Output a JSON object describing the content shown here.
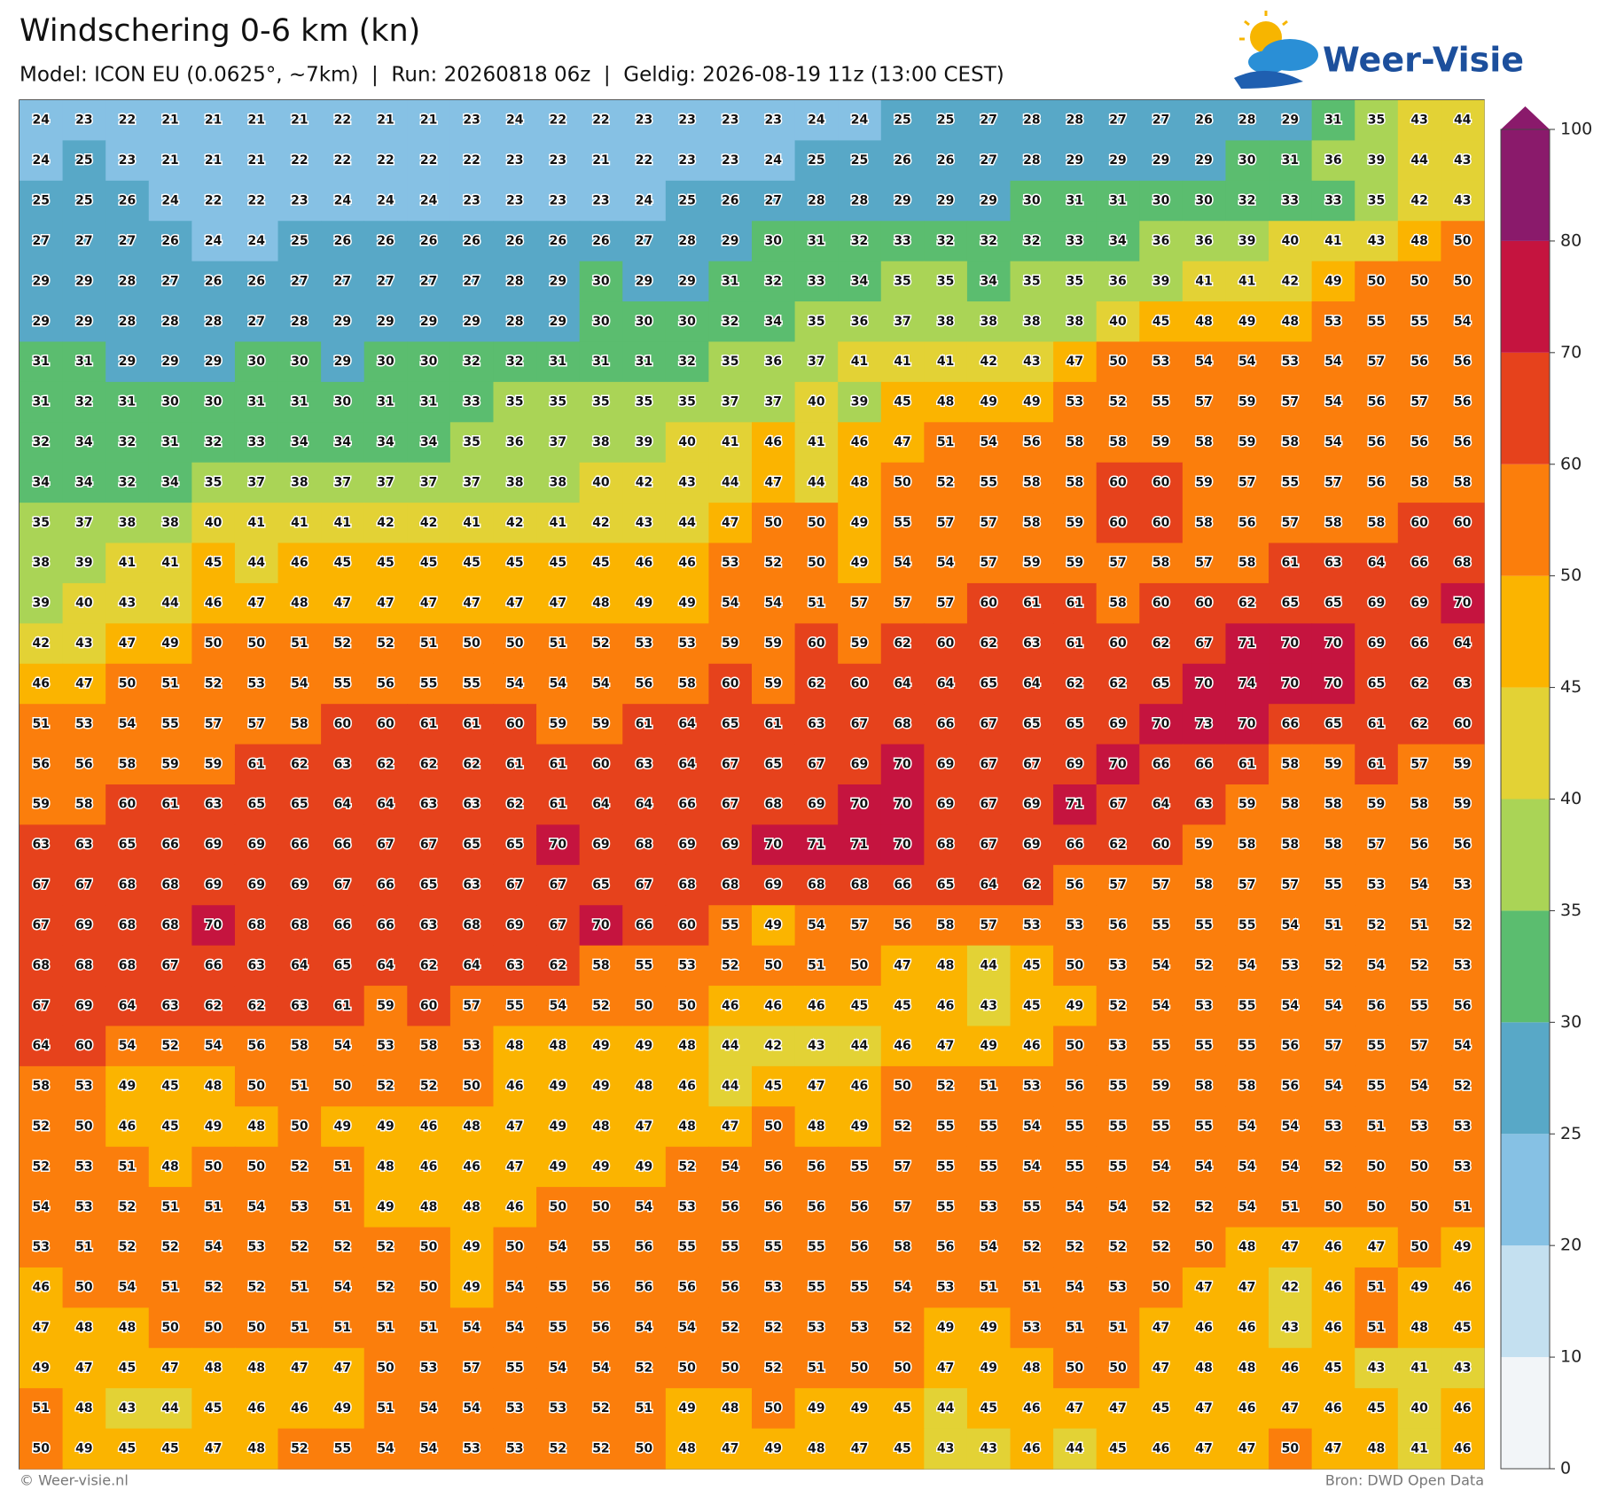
{
  "header": {
    "title": "Windschering 0-6 km (kn)",
    "subtitle": "Model: ICON EU (0.0625°, ~7km)  |  Run: 20260818 06z  |  Geldig: 2026-08-19 11z (13:00 CEST)"
  },
  "logo": "Weer-Visie",
  "map": {
    "rows": [
      [
        24,
        23,
        22,
        21,
        21,
        21,
        21,
        22,
        21,
        21,
        23,
        24,
        22,
        22,
        23,
        23,
        23,
        23,
        24,
        24,
        25,
        25,
        27,
        28,
        28,
        27,
        27,
        26,
        28,
        29,
        31,
        35,
        43,
        44
      ],
      [
        24,
        25,
        23,
        21,
        21,
        21,
        22,
        22,
        22,
        22,
        22,
        23,
        23,
        21,
        22,
        23,
        23,
        24,
        25,
        25,
        26,
        26,
        27,
        28,
        29,
        29,
        29,
        29,
        30,
        31,
        36,
        39,
        44,
        43
      ],
      [
        25,
        25,
        26,
        24,
        22,
        22,
        23,
        24,
        24,
        24,
        23,
        23,
        23,
        23,
        24,
        25,
        26,
        27,
        28,
        28,
        29,
        29,
        29,
        30,
        31,
        31,
        30,
        30,
        32,
        33,
        33,
        35,
        42,
        43
      ],
      [
        27,
        27,
        27,
        26,
        24,
        24,
        25,
        26,
        26,
        26,
        26,
        26,
        26,
        26,
        27,
        28,
        29,
        30,
        31,
        32,
        33,
        32,
        32,
        32,
        33,
        34,
        36,
        36,
        39,
        40,
        41,
        43,
        48,
        50
      ],
      [
        29,
        29,
        28,
        27,
        26,
        26,
        27,
        27,
        27,
        27,
        27,
        28,
        29,
        30,
        29,
        29,
        31,
        32,
        33,
        34,
        35,
        35,
        34,
        35,
        35,
        36,
        39,
        41,
        41,
        42,
        49,
        50,
        50,
        50
      ],
      [
        29,
        29,
        28,
        28,
        28,
        27,
        28,
        29,
        29,
        29,
        29,
        28,
        29,
        30,
        30,
        30,
        32,
        34,
        35,
        36,
        37,
        38,
        38,
        38,
        38,
        40,
        45,
        48,
        49,
        48,
        53,
        55,
        55,
        54
      ],
      [
        31,
        31,
        29,
        29,
        29,
        30,
        30,
        29,
        30,
        30,
        32,
        32,
        31,
        31,
        31,
        32,
        35,
        36,
        37,
        41,
        41,
        41,
        42,
        43,
        47,
        50,
        53,
        54,
        54,
        53,
        54,
        57,
        56,
        56
      ],
      [
        31,
        32,
        31,
        30,
        30,
        31,
        31,
        30,
        31,
        31,
        33,
        35,
        35,
        35,
        35,
        35,
        37,
        37,
        40,
        39,
        45,
        48,
        49,
        49,
        53,
        52,
        55,
        57,
        59,
        57,
        54,
        56,
        57,
        56
      ],
      [
        32,
        34,
        32,
        31,
        32,
        33,
        34,
        34,
        34,
        34,
        35,
        36,
        37,
        38,
        39,
        40,
        41,
        46,
        41,
        46,
        47,
        51,
        54,
        56,
        58,
        58,
        59,
        58,
        59,
        58,
        54,
        56,
        56,
        56
      ],
      [
        34,
        34,
        32,
        34,
        35,
        37,
        38,
        37,
        37,
        37,
        37,
        38,
        38,
        40,
        42,
        43,
        44,
        47,
        44,
        48,
        50,
        52,
        55,
        58,
        58,
        60,
        60,
        59,
        57,
        55,
        57,
        56,
        58,
        58
      ],
      [
        35,
        37,
        38,
        38,
        40,
        41,
        41,
        41,
        42,
        42,
        41,
        42,
        41,
        42,
        43,
        44,
        47,
        50,
        50,
        49,
        55,
        57,
        57,
        58,
        59,
        60,
        60,
        58,
        56,
        57,
        58,
        58,
        60,
        60
      ],
      [
        38,
        39,
        41,
        41,
        45,
        44,
        46,
        45,
        45,
        45,
        45,
        45,
        45,
        45,
        46,
        46,
        53,
        52,
        50,
        49,
        54,
        54,
        57,
        59,
        59,
        57,
        58,
        57,
        58,
        61,
        63,
        64,
        66,
        68
      ],
      [
        39,
        40,
        43,
        44,
        46,
        47,
        48,
        47,
        47,
        47,
        47,
        47,
        47,
        48,
        49,
        49,
        54,
        54,
        51,
        57,
        57,
        57,
        60,
        61,
        61,
        58,
        60,
        60,
        62,
        65,
        65,
        69,
        69,
        70
      ],
      [
        42,
        43,
        47,
        49,
        50,
        50,
        51,
        52,
        52,
        51,
        50,
        50,
        51,
        52,
        53,
        53,
        59,
        59,
        60,
        59,
        62,
        60,
        62,
        63,
        61,
        60,
        62,
        67,
        71,
        70,
        70,
        69,
        66,
        64
      ],
      [
        46,
        47,
        50,
        51,
        52,
        53,
        54,
        55,
        56,
        55,
        55,
        54,
        54,
        54,
        56,
        58,
        60,
        59,
        62,
        60,
        64,
        64,
        65,
        64,
        62,
        62,
        65,
        70,
        74,
        70,
        70,
        65,
        62,
        63
      ],
      [
        51,
        53,
        54,
        55,
        57,
        57,
        58,
        60,
        60,
        61,
        61,
        60,
        59,
        59,
        61,
        64,
        65,
        61,
        63,
        67,
        68,
        66,
        67,
        65,
        65,
        69,
        70,
        73,
        70,
        66,
        65,
        61,
        62,
        60
      ],
      [
        56,
        56,
        58,
        59,
        59,
        61,
        62,
        63,
        62,
        62,
        62,
        61,
        61,
        60,
        63,
        64,
        67,
        65,
        67,
        69,
        70,
        69,
        67,
        67,
        69,
        70,
        66,
        66,
        61,
        58,
        59,
        61,
        57,
        59
      ],
      [
        59,
        58,
        60,
        61,
        63,
        65,
        65,
        64,
        64,
        63,
        63,
        62,
        61,
        64,
        64,
        66,
        67,
        68,
        69,
        70,
        70,
        69,
        67,
        69,
        71,
        67,
        64,
        63,
        59,
        58,
        58,
        59,
        58,
        59
      ],
      [
        63,
        63,
        65,
        66,
        69,
        69,
        66,
        66,
        67,
        67,
        65,
        65,
        70,
        69,
        68,
        69,
        69,
        70,
        71,
        71,
        70,
        68,
        67,
        69,
        66,
        62,
        60,
        59,
        58,
        58,
        58,
        57,
        56,
        56
      ],
      [
        67,
        67,
        68,
        68,
        69,
        69,
        69,
        67,
        66,
        65,
        63,
        67,
        67,
        65,
        67,
        68,
        68,
        69,
        68,
        68,
        66,
        65,
        64,
        62,
        56,
        57,
        57,
        58,
        57,
        57,
        55,
        53,
        54,
        53
      ],
      [
        67,
        69,
        68,
        68,
        70,
        68,
        68,
        66,
        66,
        63,
        68,
        69,
        67,
        70,
        66,
        60,
        55,
        49,
        54,
        57,
        56,
        58,
        57,
        53,
        53,
        56,
        55,
        55,
        55,
        54,
        51,
        52,
        51,
        52
      ],
      [
        68,
        68,
        68,
        67,
        66,
        63,
        64,
        65,
        64,
        62,
        64,
        63,
        62,
        58,
        55,
        53,
        52,
        50,
        51,
        50,
        47,
        48,
        44,
        45,
        50,
        53,
        54,
        52,
        54,
        53,
        52,
        54,
        52,
        53
      ],
      [
        67,
        69,
        64,
        63,
        62,
        62,
        63,
        61,
        59,
        60,
        57,
        55,
        54,
        52,
        50,
        50,
        46,
        46,
        46,
        45,
        45,
        46,
        43,
        45,
        49,
        52,
        54,
        53,
        55,
        54,
        54,
        56,
        55,
        56
      ],
      [
        64,
        60,
        54,
        52,
        54,
        56,
        58,
        54,
        53,
        58,
        53,
        48,
        48,
        49,
        49,
        48,
        44,
        42,
        43,
        44,
        46,
        47,
        49,
        46,
        50,
        53,
        55,
        55,
        55,
        56,
        57,
        55,
        57,
        54
      ],
      [
        58,
        53,
        49,
        45,
        48,
        50,
        51,
        50,
        52,
        52,
        50,
        46,
        49,
        49,
        48,
        46,
        44,
        45,
        47,
        46,
        50,
        52,
        51,
        53,
        56,
        55,
        59,
        58,
        58,
        56,
        54,
        55,
        54,
        52
      ],
      [
        52,
        50,
        46,
        45,
        49,
        48,
        50,
        49,
        49,
        46,
        48,
        47,
        49,
        48,
        47,
        48,
        47,
        50,
        48,
        49,
        52,
        55,
        55,
        54,
        55,
        55,
        55,
        55,
        54,
        54,
        53,
        51,
        53,
        53
      ],
      [
        52,
        53,
        51,
        48,
        50,
        50,
        52,
        51,
        48,
        46,
        46,
        47,
        49,
        49,
        49,
        52,
        54,
        56,
        56,
        55,
        57,
        55,
        55,
        54,
        55,
        55,
        54,
        54,
        54,
        54,
        52,
        50,
        50,
        53
      ],
      [
        54,
        53,
        52,
        51,
        51,
        54,
        53,
        51,
        49,
        48,
        48,
        46,
        50,
        50,
        54,
        53,
        56,
        56,
        56,
        56,
        57,
        55,
        53,
        55,
        54,
        54,
        52,
        52,
        54,
        51,
        50,
        50,
        50,
        51
      ],
      [
        53,
        51,
        52,
        52,
        54,
        53,
        52,
        52,
        52,
        50,
        49,
        50,
        54,
        55,
        56,
        55,
        55,
        55,
        55,
        56,
        58,
        56,
        54,
        52,
        52,
        52,
        52,
        50,
        48,
        47,
        46,
        47,
        50,
        49
      ],
      [
        46,
        50,
        54,
        51,
        52,
        52,
        51,
        54,
        52,
        50,
        49,
        54,
        55,
        56,
        56,
        56,
        56,
        53,
        55,
        55,
        54,
        53,
        51,
        51,
        54,
        53,
        50,
        47,
        47,
        42,
        46,
        51,
        49,
        46
      ],
      [
        47,
        48,
        48,
        50,
        50,
        50,
        51,
        51,
        51,
        51,
        54,
        54,
        55,
        56,
        54,
        54,
        52,
        52,
        53,
        53,
        52,
        49,
        49,
        53,
        51,
        51,
        47,
        46,
        46,
        43,
        46,
        51,
        48,
        45
      ],
      [
        49,
        47,
        45,
        47,
        48,
        48,
        47,
        47,
        50,
        53,
        57,
        55,
        54,
        54,
        52,
        50,
        50,
        52,
        51,
        50,
        50,
        47,
        49,
        48,
        50,
        50,
        47,
        48,
        48,
        46,
        45,
        43,
        41,
        43
      ],
      [
        51,
        48,
        43,
        44,
        45,
        46,
        46,
        49,
        51,
        54,
        54,
        53,
        53,
        52,
        51,
        49,
        48,
        50,
        49,
        49,
        45,
        44,
        45,
        46,
        47,
        47,
        45,
        47,
        46,
        47,
        46,
        45,
        40,
        46
      ],
      [
        50,
        49,
        45,
        45,
        47,
        48,
        52,
        55,
        54,
        54,
        53,
        53,
        52,
        52,
        50,
        48,
        47,
        49,
        48,
        47,
        45,
        43,
        43,
        46,
        44,
        45,
        46,
        47,
        47,
        50,
        47,
        48,
        41,
        46
      ]
    ]
  },
  "colorbar": {
    "ticks": [
      0,
      10,
      20,
      25,
      30,
      35,
      40,
      45,
      50,
      60,
      70,
      80,
      100
    ],
    "colors": [
      "#f2f5f8",
      "#c4e0f0",
      "#86c1e4",
      "#58a8c7",
      "#5bbd6f",
      "#aad456",
      "#e3d235",
      "#fbb400",
      "#fb7e0c",
      "#e6421c",
      "#c5143f",
      "#8a1a6b"
    ]
  },
  "footer": {
    "left": "© Weer-visie.nl",
    "right": "Bron: DWD Open Data"
  }
}
